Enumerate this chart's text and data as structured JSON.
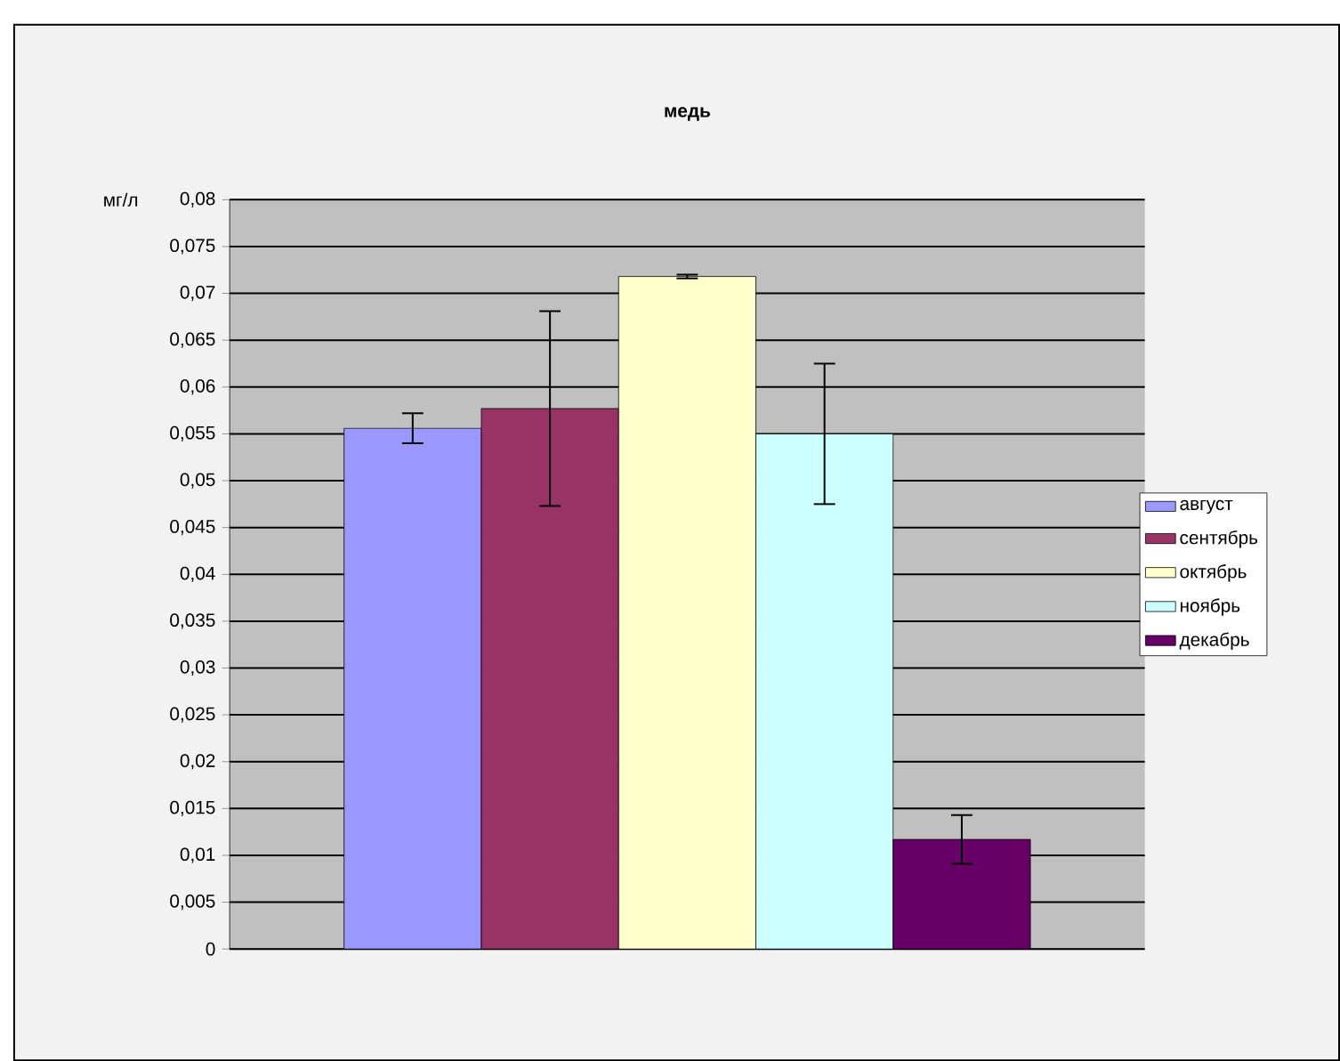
{
  "chart_data": {
    "type": "bar",
    "title": "медь",
    "ylabel": "мг/л",
    "categories": [
      null
    ],
    "series": [
      {
        "name": "август",
        "color": "#9999ff",
        "values": [
          0.0556
        ],
        "errors": [
          0.0016
        ]
      },
      {
        "name": "сентябрь",
        "color": "#993366",
        "values": [
          0.0577
        ],
        "errors": [
          0.0104
        ]
      },
      {
        "name": "октябрь",
        "color": "#ffffcc",
        "values": [
          0.0718
        ],
        "errors": [
          0.0002
        ]
      },
      {
        "name": "ноябрь",
        "color": "#ccffff",
        "values": [
          0.055
        ],
        "errors": [
          0.0075
        ]
      },
      {
        "name": "декабрь",
        "color": "#660066",
        "values": [
          0.0117
        ],
        "errors": [
          0.0026
        ]
      }
    ],
    "ylim": [
      0,
      0.08
    ],
    "yticks": [
      {
        "value": 0,
        "label": "0"
      },
      {
        "value": 0.005,
        "label": "0,005"
      },
      {
        "value": 0.01,
        "label": "0,01"
      },
      {
        "value": 0.015,
        "label": "0,015"
      },
      {
        "value": 0.02,
        "label": "0,02"
      },
      {
        "value": 0.025,
        "label": "0,025"
      },
      {
        "value": 0.03,
        "label": "0,03"
      },
      {
        "value": 0.035,
        "label": "0,035"
      },
      {
        "value": 0.04,
        "label": "0,04"
      },
      {
        "value": 0.045,
        "label": "0,045"
      },
      {
        "value": 0.05,
        "label": "0,05"
      },
      {
        "value": 0.055,
        "label": "0,055"
      },
      {
        "value": 0.06,
        "label": "0,06"
      },
      {
        "value": 0.065,
        "label": "0,065"
      },
      {
        "value": 0.07,
        "label": "0,07"
      },
      {
        "value": 0.075,
        "label": "0,075"
      },
      {
        "value": 0.08,
        "label": "0,08"
      }
    ],
    "grid": "y",
    "legend": "right"
  }
}
